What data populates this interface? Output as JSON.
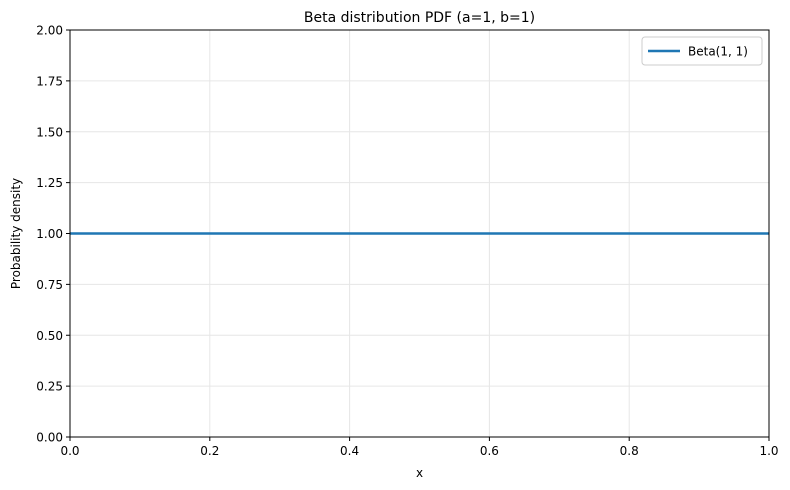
{
  "chart_data": {
    "type": "line",
    "title": "Beta distribution PDF (a=1, b=1)",
    "xlabel": "x",
    "ylabel": "Probability density",
    "xlim": [
      0,
      1
    ],
    "ylim": [
      0,
      2
    ],
    "x_ticks": [
      "0.0",
      "0.2",
      "0.4",
      "0.6",
      "0.8",
      "1.0"
    ],
    "y_ticks": [
      "0.00",
      "0.25",
      "0.50",
      "0.75",
      "1.00",
      "1.25",
      "1.50",
      "1.75",
      "2.00"
    ],
    "grid": true,
    "legend": "top-right",
    "series": [
      {
        "name": "Beta(1, 1)",
        "color": "#1f77b4",
        "x": [
          0,
          1
        ],
        "y": [
          1,
          1
        ]
      }
    ]
  }
}
